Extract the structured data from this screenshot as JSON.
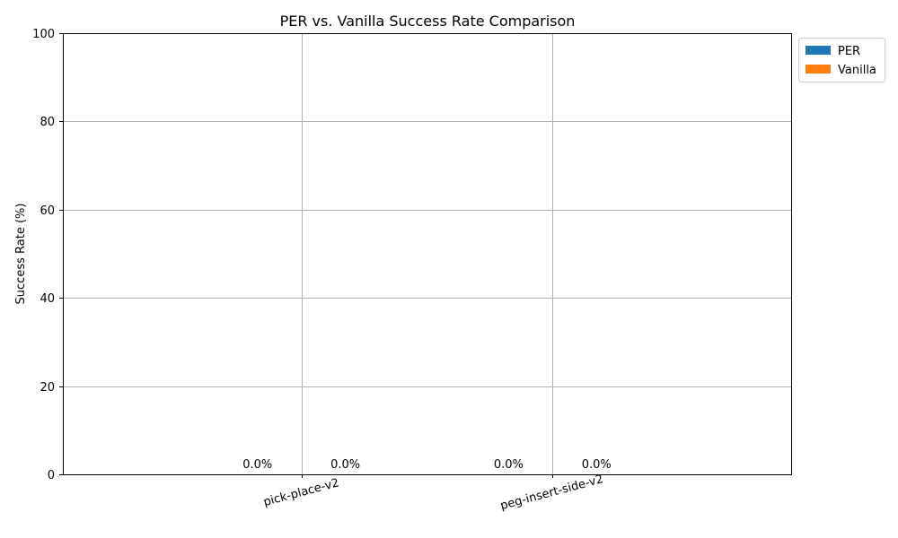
{
  "chart_data": {
    "type": "bar",
    "title": "PER vs. Vanilla Success Rate Comparison",
    "xlabel": "",
    "ylabel": "Success Rate (%)",
    "categories": [
      "pick-place-v2",
      "peg-insert-side-v2"
    ],
    "series": [
      {
        "name": "PER",
        "values": [
          0.0,
          0.0
        ],
        "labels": [
          "0.0%",
          "0.0%"
        ],
        "color": "#1f77b4"
      },
      {
        "name": "Vanilla",
        "values": [
          0.0,
          0.0
        ],
        "labels": [
          "0.0%",
          "0.0%"
        ],
        "color": "#ff7f0e"
      }
    ],
    "ylim": [
      0,
      100
    ],
    "yticks": [
      0,
      20,
      40,
      60,
      80,
      100
    ],
    "grid": true,
    "legend": "outside-top-right"
  }
}
